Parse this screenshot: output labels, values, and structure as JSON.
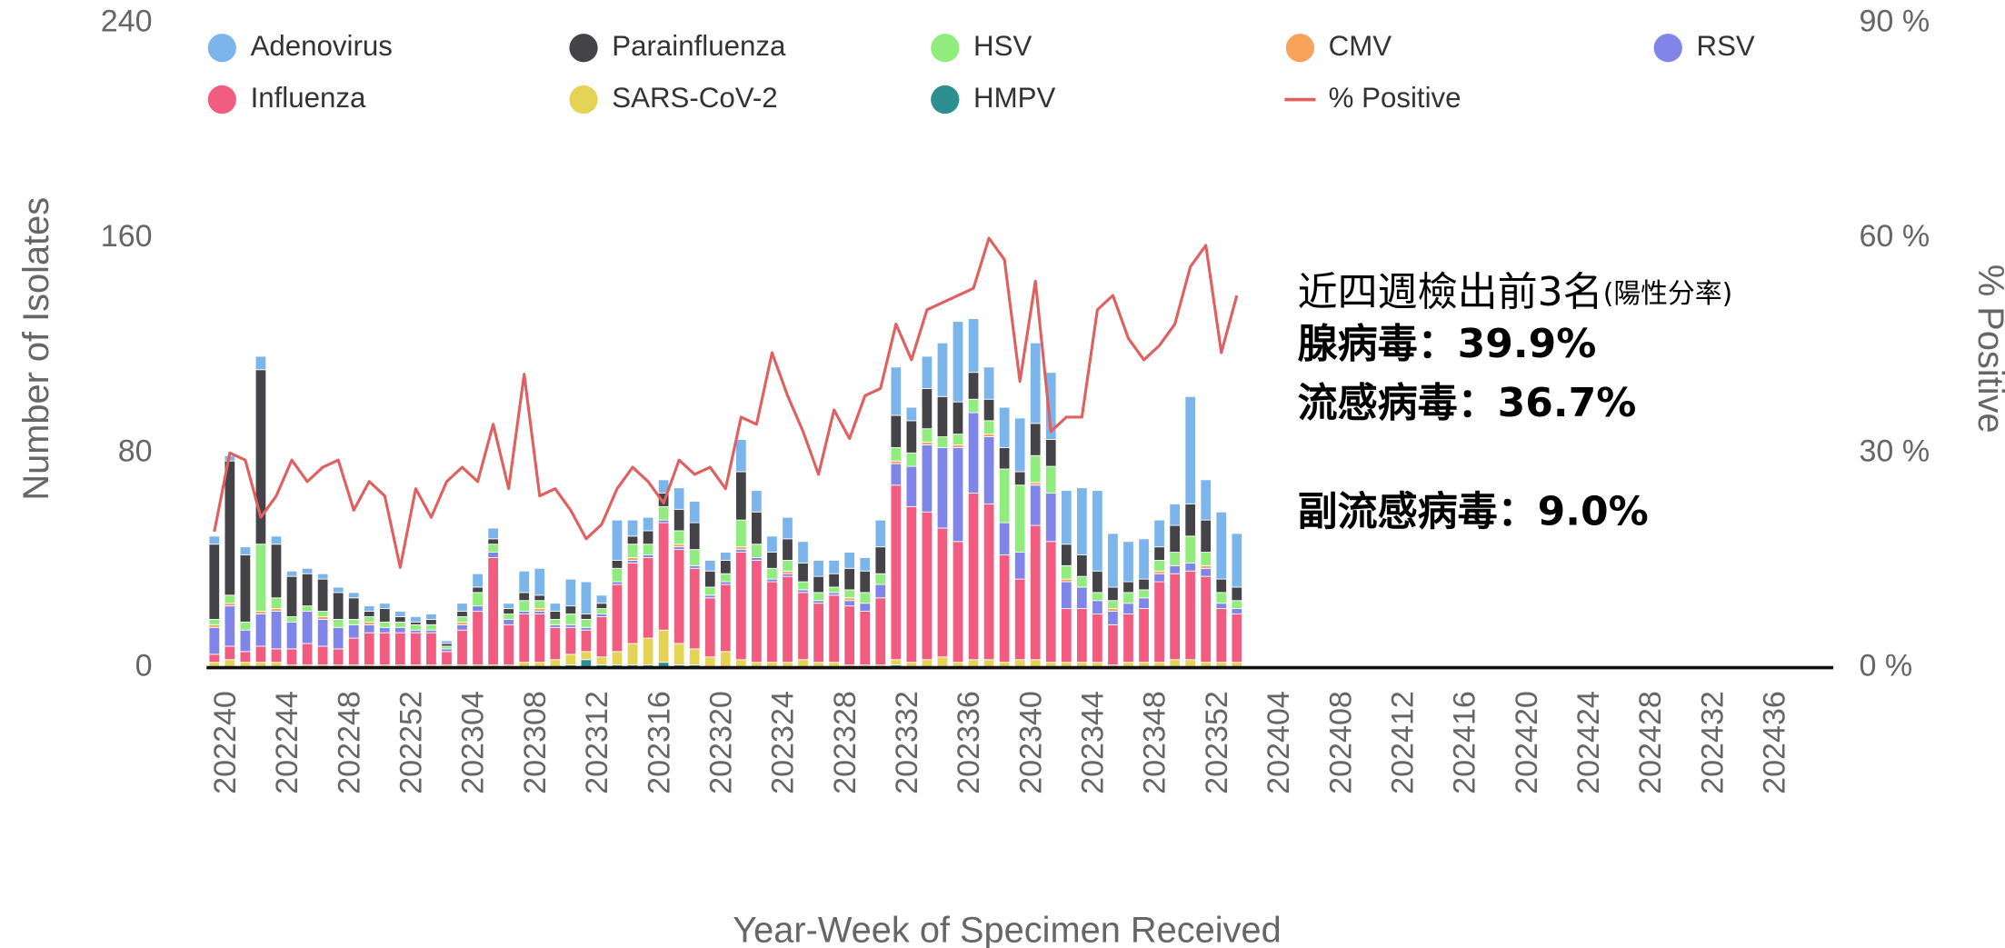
{
  "chart_data": {
    "type": "bar",
    "stacked": true,
    "y_axis_label": "Number of Isolates",
    "y2_axis_label": "% Positive",
    "x_axis_label": "Year-Week of Specimen Received",
    "annotation": {
      "title": "近四週檢出前3名",
      "title_note": "(陽性分率)",
      "lines": [
        "腺病毒：39.9%",
        "流感病毒：36.7%",
        "副流感病毒：9.0%"
      ]
    },
    "ylim": [
      0,
      240
    ],
    "yticks": [
      0,
      80,
      160,
      240
    ],
    "y2lim": [
      0,
      90
    ],
    "y2ticks": [
      {
        "value": 0,
        "label": "0 %"
      },
      {
        "value": 30,
        "label": "30 %"
      },
      {
        "value": 60,
        "label": "60 %"
      },
      {
        "value": 90,
        "label": "90 %"
      }
    ],
    "grid": false,
    "legend": "top",
    "categories": [
      "202240",
      null,
      null,
      null,
      "202244",
      null,
      null,
      null,
      "202248",
      null,
      null,
      null,
      "202252",
      null,
      null,
      null,
      "202304",
      null,
      null,
      null,
      "202308",
      null,
      null,
      null,
      "202312",
      null,
      null,
      null,
      "202316",
      null,
      null,
      null,
      "202320",
      null,
      null,
      null,
      "202324",
      null,
      null,
      null,
      "202328",
      null,
      null,
      null,
      "202332",
      null,
      null,
      null,
      "202336",
      null,
      null,
      null,
      "202340",
      null,
      null,
      null,
      "202344",
      null,
      null,
      null,
      "202348",
      null,
      null,
      null,
      "202352",
      null,
      null,
      null,
      "202404",
      null,
      null,
      null,
      "202408",
      null,
      null,
      null,
      "202412",
      null,
      null,
      null,
      "202416",
      null,
      null,
      null,
      "202420",
      null,
      null,
      null,
      "202424",
      null,
      null,
      null,
      "202428",
      null,
      null,
      null,
      "202432",
      null,
      null,
      null,
      "202436",
      null,
      null,
      null,
      null
    ],
    "series": [
      {
        "name": "Adenovirus",
        "color": "#7cb5ec",
        "values": [
          3,
          2,
          3,
          5,
          3,
          2,
          2,
          2,
          2,
          2,
          2,
          2,
          2,
          2,
          2,
          1,
          3,
          5,
          4,
          2,
          8,
          10,
          3,
          10,
          12,
          3,
          15,
          6,
          5,
          5,
          8,
          8,
          4,
          3,
          12,
          8,
          6,
          8,
          8,
          6,
          5,
          6,
          5,
          10,
          18,
          5,
          12,
          20,
          30,
          20,
          12,
          15,
          20,
          30,
          25,
          20,
          25,
          30,
          20,
          15,
          15,
          10,
          8,
          40,
          15,
          25,
          20,
          null,
          null,
          null,
          null,
          null,
          null,
          null,
          null,
          null,
          null,
          null,
          null,
          null,
          null,
          null,
          null,
          null,
          null,
          null,
          null,
          null,
          null,
          null,
          null,
          null,
          null,
          null,
          null,
          null,
          null,
          null,
          null,
          null,
          null,
          null,
          null,
          null,
          null
        ]
      },
      {
        "name": "Parainfluenza",
        "color": "#434348",
        "values": [
          28,
          50,
          25,
          65,
          20,
          15,
          12,
          12,
          10,
          8,
          2,
          5,
          2,
          1,
          2,
          1,
          2,
          2,
          2,
          2,
          3,
          2,
          3,
          3,
          2,
          2,
          3,
          3,
          5,
          5,
          8,
          10,
          6,
          5,
          18,
          12,
          6,
          8,
          7,
          6,
          5,
          8,
          8,
          10,
          12,
          12,
          15,
          15,
          12,
          10,
          8,
          8,
          5,
          12,
          10,
          8,
          8,
          8,
          5,
          4,
          4,
          5,
          10,
          12,
          12,
          5,
          5,
          null,
          null,
          null,
          null,
          null,
          null,
          null,
          null,
          null,
          null,
          null,
          null,
          null,
          null,
          null,
          null,
          null,
          null,
          null,
          null,
          null,
          null,
          null,
          null,
          null,
          null,
          null,
          null,
          null,
          null,
          null,
          null,
          null,
          null,
          null,
          null,
          null,
          null
        ]
      },
      {
        "name": "HSV",
        "color": "#90ed7d",
        "values": [
          2,
          3,
          3,
          25,
          4,
          2,
          2,
          2,
          3,
          2,
          2,
          2,
          2,
          2,
          2,
          1,
          2,
          5,
          3,
          2,
          4,
          3,
          2,
          4,
          3,
          2,
          5,
          5,
          4,
          5,
          5,
          6,
          3,
          3,
          10,
          5,
          4,
          4,
          3,
          3,
          2,
          3,
          4,
          4,
          5,
          5,
          5,
          4,
          4,
          5,
          5,
          20,
          25,
          10,
          10,
          5,
          4,
          3,
          3,
          4,
          3,
          4,
          5,
          10,
          5,
          4,
          3,
          null,
          null,
          null,
          null,
          null,
          null,
          null,
          null,
          null,
          null,
          null,
          null,
          null,
          null,
          null,
          null,
          null,
          null,
          null,
          null,
          null,
          null,
          null,
          null,
          null,
          null,
          null,
          null,
          null,
          null,
          null,
          null,
          null,
          null,
          null,
          null,
          null,
          null
        ]
      },
      {
        "name": "CMV",
        "color": "#f7a35c",
        "values": [
          1,
          1,
          0,
          1,
          1,
          0,
          0,
          1,
          0,
          0,
          1,
          0,
          0,
          0,
          0,
          0,
          1,
          0,
          0,
          0,
          0,
          1,
          0,
          0,
          0,
          0,
          0,
          1,
          0,
          0,
          1,
          0,
          0,
          0,
          1,
          0,
          0,
          1,
          0,
          0,
          0,
          1,
          0,
          0,
          1,
          0,
          1,
          0,
          1,
          0,
          1,
          0,
          0,
          1,
          0,
          1,
          0,
          0,
          1,
          0,
          0,
          1,
          0,
          0,
          1,
          0,
          0,
          null,
          null,
          null,
          null,
          null,
          null,
          null,
          null,
          null,
          null,
          null,
          null,
          null,
          null,
          null,
          null,
          null,
          null,
          null,
          null,
          null,
          null,
          null,
          null,
          null,
          null,
          null,
          null,
          null,
          null,
          null,
          null,
          null,
          null,
          null,
          null,
          null,
          null
        ]
      },
      {
        "name": "RSV",
        "color": "#8085e9",
        "values": [
          10,
          15,
          8,
          12,
          14,
          10,
          12,
          10,
          8,
          5,
          3,
          2,
          2,
          1,
          1,
          1,
          2,
          2,
          2,
          2,
          1,
          1,
          1,
          1,
          1,
          1,
          1,
          1,
          1,
          1,
          1,
          1,
          1,
          1,
          1,
          1,
          1,
          1,
          1,
          1,
          1,
          2,
          3,
          5,
          8,
          15,
          25,
          30,
          35,
          30,
          25,
          12,
          10,
          15,
          18,
          10,
          8,
          5,
          5,
          4,
          4,
          3,
          3,
          3,
          3,
          2,
          2,
          null,
          null,
          null,
          null,
          null,
          null,
          null,
          null,
          null,
          null,
          null,
          null,
          null,
          null,
          null,
          null,
          null,
          null,
          null,
          null,
          null,
          null,
          null,
          null,
          null,
          null,
          null,
          null,
          null,
          null,
          null,
          null,
          null,
          null,
          null,
          null,
          null,
          null
        ]
      },
      {
        "name": "Influenza",
        "color": "#f15c80",
        "values": [
          3,
          5,
          4,
          6,
          5,
          6,
          8,
          7,
          6,
          10,
          12,
          12,
          12,
          12,
          12,
          5,
          13,
          20,
          40,
          15,
          18,
          18,
          12,
          10,
          8,
          15,
          25,
          30,
          30,
          40,
          35,
          30,
          22,
          25,
          40,
          38,
          30,
          32,
          25,
          22,
          25,
          22,
          20,
          25,
          65,
          58,
          55,
          48,
          45,
          62,
          58,
          40,
          30,
          50,
          45,
          20,
          20,
          18,
          15,
          18,
          20,
          30,
          32,
          33,
          32,
          20,
          18,
          null,
          null,
          null,
          null,
          null,
          null,
          null,
          null,
          null,
          null,
          null,
          null,
          null,
          null,
          null,
          null,
          null,
          null,
          null,
          null,
          null,
          null,
          null,
          null,
          null,
          null,
          null,
          null,
          null,
          null,
          null,
          null,
          null,
          null,
          null,
          null,
          null,
          null
        ]
      },
      {
        "name": "SARS-CoV-2",
        "color": "#e4d354",
        "values": [
          2,
          3,
          2,
          2,
          2,
          1,
          1,
          1,
          1,
          1,
          1,
          1,
          1,
          1,
          1,
          1,
          1,
          1,
          1,
          1,
          2,
          2,
          3,
          4,
          3,
          3,
          5,
          8,
          10,
          12,
          8,
          6,
          4,
          6,
          3,
          2,
          2,
          2,
          3,
          2,
          2,
          1,
          1,
          1,
          2,
          2,
          3,
          4,
          2,
          3,
          3,
          2,
          3,
          3,
          2,
          2,
          2,
          2,
          1,
          2,
          2,
          2,
          3,
          3,
          2,
          2,
          2,
          null,
          null,
          null,
          null,
          null,
          null,
          null,
          null,
          null,
          null,
          null,
          null,
          null,
          null,
          null,
          null,
          null,
          null,
          null,
          null,
          null,
          null,
          null,
          null,
          null,
          null,
          null,
          null,
          null,
          null,
          null,
          null,
          null,
          null,
          null,
          null,
          null,
          null
        ]
      },
      {
        "name": "HMPV",
        "color": "#2b908f",
        "values": [
          0,
          0,
          0,
          0,
          0,
          0,
          0,
          0,
          0,
          0,
          0,
          0,
          0,
          0,
          0,
          0,
          0,
          0,
          0,
          0,
          0,
          0,
          0,
          1,
          3,
          1,
          1,
          1,
          1,
          2,
          1,
          1,
          0,
          0,
          0,
          0,
          0,
          0,
          0,
          0,
          0,
          0,
          0,
          0,
          1,
          0,
          0,
          0,
          0,
          0,
          0,
          0,
          0,
          0,
          0,
          0,
          0,
          0,
          0,
          0,
          0,
          0,
          0,
          0,
          0,
          0,
          0,
          null,
          null,
          null,
          null,
          null,
          null,
          null,
          null,
          null,
          null,
          null,
          null,
          null,
          null,
          null,
          null,
          null,
          null,
          null,
          null,
          null,
          null,
          null,
          null,
          null,
          null,
          null,
          null,
          null,
          null,
          null,
          null,
          null,
          null,
          null,
          null,
          null,
          null
        ]
      },
      {
        "name": "% Positive",
        "color": "#e0605f",
        "type": "line",
        "axis": "y2",
        "values": [
          19,
          30,
          29,
          21,
          24,
          29,
          26,
          28,
          29,
          22,
          26,
          24,
          14,
          25,
          21,
          26,
          28,
          26,
          34,
          25,
          41,
          24,
          25,
          22,
          18,
          20,
          25,
          28,
          26,
          23,
          29,
          27,
          28,
          25,
          35,
          34,
          44,
          38,
          33,
          27,
          36,
          32,
          38,
          39,
          48,
          43,
          50,
          51,
          52,
          53,
          60,
          57,
          40,
          54,
          33,
          35,
          35,
          50,
          52,
          46,
          43,
          45,
          48,
          56,
          59,
          44,
          52,
          null,
          null,
          null,
          null,
          null,
          null,
          null,
          null,
          null,
          null,
          null,
          null,
          null,
          null,
          null,
          null,
          null,
          null,
          null,
          null,
          null,
          null,
          null,
          null,
          null,
          null,
          null,
          null,
          null,
          null,
          null,
          null,
          null,
          null,
          null,
          null,
          null,
          null
        ]
      }
    ]
  }
}
